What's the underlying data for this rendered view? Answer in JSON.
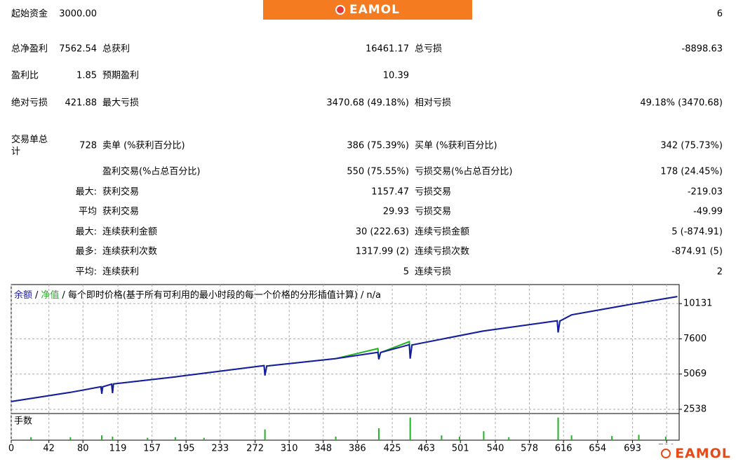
{
  "logo": "EAMOL",
  "table": {
    "rows": [
      {
        "l1": "起始资金",
        "v1": "3000.00",
        "v3": "6"
      },
      {
        "l1": "总净盈利",
        "v1": "7562.54",
        "l2": "总获利",
        "v2": "16461.17",
        "l3": "总亏损",
        "v3": "-8898.63"
      },
      {
        "l1": "盈利比",
        "v1": "1.85",
        "l2": "预期盈利",
        "v2": "10.39"
      },
      {
        "l1": "绝对亏损",
        "v1": "421.88",
        "l2": "最大亏损",
        "v2": "3470.68 (49.18%)",
        "l3": "相对亏损",
        "v3": "49.18% (3470.68)"
      },
      {
        "l1": "交易单总计",
        "v1": "728",
        "l2": "卖单 (%获利百分比)",
        "v2": "386 (75.39%)",
        "l3": "买单 (%获利百分比)",
        "v3": "342 (75.73%)"
      },
      {
        "l2": "盈利交易(%占总百分比)",
        "v2": "550 (75.55%)",
        "l3": "亏损交易(%占总百分比)",
        "v3": "178 (24.45%)"
      },
      {
        "v1": "最大:",
        "l2": "获利交易",
        "v2": "1157.47",
        "l3": "亏损交易",
        "v3": "-219.03"
      },
      {
        "v1": "平均",
        "l2": "获利交易",
        "v2": "29.93",
        "l3": "亏损交易",
        "v3": "-49.99"
      },
      {
        "v1": "最大:",
        "l2": "连续获利金额",
        "v2": "30 (222.63)",
        "l3": "连续亏损金额",
        "v3": "5 (-874.91)"
      },
      {
        "v1": "最多:",
        "l2": "连续获利次数",
        "v2": "1317.99 (2)",
        "l3": "连续亏损次数",
        "v3": "-874.91 (5)"
      },
      {
        "v1": "平均:",
        "l2": "连续获利",
        "v2": "5",
        "l3": "连续亏损",
        "v3": "2"
      }
    ]
  },
  "chart_data": {
    "type": "line",
    "separator": "/",
    "mode_text": "每个即时价格(基于所有可利用的最小时段的每一个价格的分形插值计算)",
    "na_text": "n/a",
    "x": [
      0,
      66,
      100,
      101,
      102,
      112,
      113,
      114,
      183,
      282,
      283,
      285,
      362,
      409,
      410,
      412,
      444,
      445,
      447,
      526,
      609,
      610,
      612,
      625,
      691,
      743
    ],
    "series": [
      {
        "name": "余额",
        "color": "#1a1aa6",
        "values": [
          3095,
          3753,
          4158,
          3652,
          4150,
          4350,
          3700,
          4360,
          4866,
          5676,
          4968,
          5650,
          6183,
          6630,
          6132,
          6620,
          7180,
          6183,
          7160,
          8157,
          8900,
          8056,
          8880,
          9321,
          10080,
          10637
        ]
      },
      {
        "name": "净值",
        "color": "#1fb31f",
        "values": [
          3095,
          3753,
          4158,
          3652,
          4150,
          4350,
          3700,
          4360,
          4866,
          5676,
          4968,
          5650,
          6183,
          6900,
          6132,
          6620,
          7398,
          6183,
          7160,
          8157,
          8900,
          8056,
          8880,
          9321,
          10080,
          10637
        ]
      }
    ],
    "xlim": [
      0,
      745
    ],
    "xticks": [
      0,
      42,
      80,
      119,
      157,
      195,
      233,
      272,
      310,
      348,
      386,
      425,
      463,
      501,
      540,
      578,
      616,
      654,
      693,
      731
    ],
    "ylim": [
      2234,
      11498
    ],
    "yticks": [
      2538,
      5069,
      7600,
      10131
    ],
    "grid": true,
    "volume": {
      "title": "手数",
      "color": "#1fb31f",
      "x": [
        22,
        66,
        101,
        113,
        152,
        183,
        215,
        283,
        362,
        410,
        445,
        480,
        500,
        527,
        555,
        610,
        625,
        670,
        700,
        730
      ],
      "values": [
        0.05,
        0.05,
        0.08,
        0.06,
        0.04,
        0.05,
        0.04,
        0.18,
        0.06,
        0.2,
        0.38,
        0.08,
        0.06,
        0.15,
        0.05,
        0.38,
        0.08,
        0.07,
        0.09,
        0.06
      ],
      "ylim": [
        0,
        0.4
      ]
    }
  }
}
